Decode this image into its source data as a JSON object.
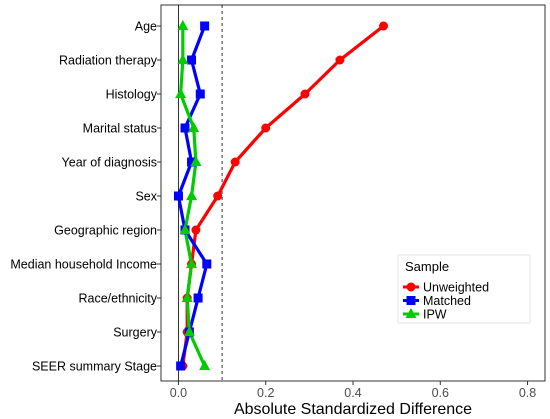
{
  "chart_data": {
    "type": "line",
    "title": "",
    "xlabel": "Absolute Standardized Difference",
    "ylabel": "",
    "xlim": [
      -0.04,
      0.84
    ],
    "xticks": [
      0.0,
      0.2,
      0.4,
      0.6,
      0.8
    ],
    "xtick_labels": [
      "0.0",
      "0.2",
      "0.4",
      "0.6",
      "0.8"
    ],
    "reference_lines": [
      0.0,
      0.1
    ],
    "categories": [
      "Age",
      "Radiation therapy",
      "Histology",
      "Marital status",
      "Year of diagnosis",
      "Sex",
      "Geographic region",
      "Median household Income",
      "Race/ethnicity",
      "Surgery",
      "SEER summary Stage"
    ],
    "legend": {
      "title": "Sample",
      "position": "right"
    },
    "series": [
      {
        "name": "Unweighted",
        "color": "#ff0000",
        "marker": "circle",
        "values": [
          0.47,
          0.37,
          0.29,
          0.2,
          0.13,
          0.09,
          0.04,
          0.03,
          0.02,
          0.02,
          0.01
        ]
      },
      {
        "name": "Matched",
        "color": "#0000ff",
        "marker": "square",
        "values": [
          0.06,
          0.03,
          0.05,
          0.015,
          0.03,
          0.0,
          0.015,
          0.065,
          0.045,
          0.025,
          0.005
        ]
      },
      {
        "name": "IPW",
        "color": "#00cc00",
        "marker": "triangle",
        "values": [
          0.01,
          0.01,
          0.005,
          0.035,
          0.04,
          0.03,
          0.015,
          0.03,
          0.02,
          0.025,
          0.06
        ]
      }
    ]
  }
}
